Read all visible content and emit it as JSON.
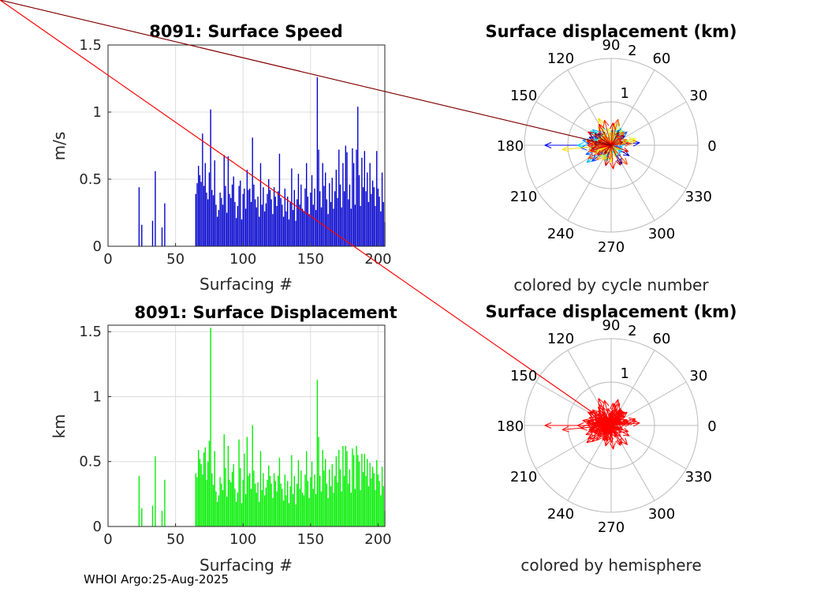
{
  "footer": "WHOI Argo:25-Aug-2025",
  "colors": {
    "speed_bar": "#0000cc",
    "displacement_bar": "#00ee00",
    "hemisphere_arrow": "#ff0000",
    "grid": "#dcdcdc",
    "polar_grid": "#bbbbbb",
    "axis": "#262626"
  },
  "chart_data": [
    {
      "id": "speed",
      "type": "bar",
      "title": "8091: Surface Speed",
      "xlabel": "Surfacing #",
      "ylabel": "m/s",
      "xlim": [
        0,
        205
      ],
      "ylim": [
        0,
        1.5
      ],
      "xticks": [
        0,
        50,
        100,
        150,
        200
      ],
      "xtick_labels": [
        "0",
        "50",
        "100",
        "150",
        "200"
      ],
      "yticks": [
        0,
        0.5,
        1,
        1.5
      ],
      "ytick_labels": [
        "0",
        "0.5",
        "1",
        "1.5"
      ],
      "grid": true,
      "series": [
        {
          "name": "speed",
          "color": "#0000cc"
        }
      ]
    },
    {
      "id": "displacement",
      "type": "bar",
      "title": "8091: Surface Displacement",
      "xlabel": "Surfacing #",
      "ylabel": "km",
      "xlim": [
        0,
        205
      ],
      "ylim": [
        0,
        1.55
      ],
      "xticks": [
        0,
        50,
        100,
        150,
        200
      ],
      "xtick_labels": [
        "0",
        "50",
        "100",
        "150",
        "200"
      ],
      "yticks": [
        0,
        0.5,
        1,
        1.5
      ],
      "ytick_labels": [
        "0",
        "0.5",
        "1",
        "1.5"
      ],
      "grid": true,
      "series": [
        {
          "name": "displacement",
          "color": "#00ee00"
        }
      ]
    },
    {
      "id": "polar_cycle",
      "type": "polar-compass",
      "title": "Surface displacement (km)",
      "caption": "colored by cycle number",
      "rmax": 2,
      "rings": [
        1,
        2
      ],
      "ring_labels": [
        "1",
        "2"
      ],
      "angles_deg": [
        0,
        30,
        60,
        90,
        120,
        150,
        180,
        210,
        240,
        270,
        300,
        330
      ],
      "angle_labels": [
        "0",
        "30",
        "60",
        "90",
        "120",
        "150",
        "180",
        "210",
        "240",
        "270",
        "300",
        "330"
      ],
      "coloring": "jet-by-cycle",
      "series": [
        {
          "name": "displacement vectors"
        }
      ]
    },
    {
      "id": "polar_hemisphere",
      "type": "polar-compass",
      "title": "Surface displacement (km)",
      "caption": "colored by hemisphere",
      "rmax": 2,
      "rings": [
        1,
        2
      ],
      "ring_labels": [
        "1",
        "2"
      ],
      "angles_deg": [
        0,
        30,
        60,
        90,
        120,
        150,
        180,
        210,
        240,
        270,
        300,
        330
      ],
      "angle_labels": [
        "0",
        "30",
        "60",
        "90",
        "120",
        "150",
        "180",
        "210",
        "240",
        "270",
        "300",
        "330"
      ],
      "coloring": "hemisphere",
      "series": [
        {
          "name": "displacement vectors",
          "color": "#ff0000"
        }
      ]
    }
  ],
  "surfacings": {
    "cycle": [
      23,
      25,
      33,
      35,
      40,
      42,
      65,
      66,
      67,
      68,
      69,
      70,
      71,
      72,
      73,
      74,
      75,
      76,
      77,
      78,
      79,
      80,
      81,
      82,
      83,
      84,
      85,
      86,
      87,
      88,
      89,
      90,
      91,
      92,
      93,
      94,
      95,
      96,
      97,
      98,
      99,
      100,
      101,
      102,
      103,
      104,
      105,
      106,
      107,
      108,
      109,
      110,
      111,
      112,
      113,
      114,
      115,
      116,
      117,
      118,
      119,
      120,
      121,
      122,
      123,
      124,
      125,
      126,
      127,
      128,
      129,
      130,
      131,
      132,
      133,
      134,
      135,
      136,
      137,
      138,
      139,
      140,
      141,
      142,
      143,
      144,
      145,
      146,
      147,
      148,
      149,
      150,
      151,
      152,
      153,
      154,
      155,
      156,
      157,
      158,
      159,
      160,
      161,
      162,
      163,
      164,
      165,
      166,
      167,
      168,
      169,
      170,
      171,
      172,
      173,
      174,
      175,
      176,
      177,
      178,
      179,
      180,
      181,
      182,
      183,
      184,
      185,
      186,
      187,
      188,
      189,
      190,
      191,
      192,
      193,
      194,
      195,
      196,
      197,
      198,
      199,
      200,
      201,
      202,
      203,
      204,
      205
    ],
    "speed": [
      0.44,
      0.16,
      0.19,
      0.56,
      0.14,
      0.32,
      0.39,
      0.47,
      0.6,
      0.53,
      0.48,
      0.84,
      0.45,
      0.62,
      0.4,
      0.35,
      0.55,
      1.02,
      0.42,
      0.38,
      0.64,
      0.31,
      0.22,
      0.27,
      0.4,
      0.36,
      0.31,
      0.68,
      0.45,
      0.25,
      0.67,
      0.39,
      0.36,
      0.46,
      0.52,
      0.33,
      0.21,
      0.3,
      0.45,
      0.49,
      0.2,
      0.39,
      0.43,
      0.28,
      0.57,
      0.42,
      0.43,
      0.33,
      0.81,
      0.46,
      0.35,
      0.29,
      0.37,
      0.22,
      0.62,
      0.31,
      0.44,
      0.26,
      0.32,
      0.39,
      0.5,
      0.42,
      0.35,
      0.24,
      0.44,
      0.37,
      0.3,
      0.41,
      0.69,
      0.36,
      0.31,
      0.22,
      0.43,
      0.26,
      0.37,
      0.2,
      0.33,
      0.58,
      0.27,
      0.42,
      0.19,
      0.35,
      0.54,
      0.31,
      0.46,
      0.28,
      0.26,
      0.43,
      0.62,
      0.37,
      0.24,
      0.4,
      0.53,
      0.31,
      0.43,
      0.27,
      1.26,
      0.72,
      0.41,
      0.29,
      0.62,
      0.45,
      0.55,
      0.35,
      0.24,
      0.47,
      0.33,
      0.51,
      0.28,
      0.41,
      0.57,
      0.36,
      0.72,
      0.46,
      0.29,
      0.62,
      0.41,
      0.75,
      0.7,
      0.35,
      0.46,
      0.28,
      0.73,
      0.62,
      0.31,
      0.72,
      1.04,
      0.53,
      0.3,
      0.66,
      0.44,
      0.71,
      0.41,
      0.55,
      0.33,
      0.62,
      0.39,
      0.49,
      0.44,
      0.3,
      0.71,
      0.43,
      0.37,
      0.26,
      0.55,
      0.33,
      0.18
    ],
    "displacement": [
      0.39,
      0.14,
      0.16,
      0.54,
      0.12,
      0.36,
      0.41,
      0.38,
      0.59,
      0.52,
      0.48,
      0.4,
      0.57,
      0.61,
      0.36,
      0.5,
      0.66,
      1.53,
      0.41,
      0.32,
      0.58,
      0.27,
      0.19,
      0.24,
      0.38,
      0.33,
      0.28,
      0.71,
      0.45,
      0.23,
      0.62,
      0.36,
      0.34,
      0.42,
      0.48,
      0.29,
      0.19,
      0.26,
      0.67,
      0.45,
      0.18,
      0.36,
      0.56,
      0.25,
      0.69,
      0.39,
      0.41,
      0.29,
      0.78,
      0.43,
      0.33,
      0.26,
      0.34,
      0.19,
      0.58,
      0.28,
      0.41,
      0.24,
      0.3,
      0.36,
      0.47,
      0.39,
      0.33,
      0.22,
      0.41,
      0.35,
      0.27,
      0.39,
      0.53,
      0.33,
      0.29,
      0.2,
      0.4,
      0.24,
      0.35,
      0.18,
      0.31,
      0.55,
      0.25,
      0.39,
      0.17,
      0.33,
      0.51,
      0.29,
      0.43,
      0.26,
      0.24,
      0.4,
      0.58,
      0.35,
      0.22,
      0.38,
      0.5,
      0.29,
      0.4,
      0.25,
      1.13,
      0.69,
      0.39,
      0.27,
      0.59,
      0.43,
      0.52,
      0.33,
      0.22,
      0.44,
      0.31,
      0.48,
      0.26,
      0.39,
      0.54,
      0.34,
      0.59,
      0.44,
      0.27,
      0.62,
      0.39,
      0.62,
      0.58,
      0.33,
      0.44,
      0.26,
      0.6,
      0.55,
      0.29,
      0.62,
      0.55,
      0.5,
      0.28,
      0.56,
      0.42,
      0.56,
      0.39,
      0.52,
      0.31,
      0.49,
      0.37,
      0.46,
      0.41,
      0.28,
      0.51,
      0.4,
      0.35,
      0.24,
      0.46,
      0.31,
      0.12
    ],
    "direction_deg": [
      175,
      200,
      20,
      160,
      95,
      250,
      10,
      35,
      150,
      190,
      330,
      60,
      175,
      210,
      120,
      300,
      5,
      180,
      140,
      80,
      220,
      15,
      345,
      100,
      165,
      45,
      270,
      185,
      130,
      25,
      200,
      85,
      310,
      155,
      40,
      230,
      110,
      350,
      170,
      60,
      290,
      195,
      140,
      20,
      215,
      75,
      160,
      325,
      180,
      50,
      240,
      120,
      5,
      280,
      145,
      90,
      205,
      30,
      340,
      170,
      115,
      255,
      65,
      190,
      15,
      135,
      300,
      225,
      170,
      45,
      95,
      260,
      185,
      10,
      150,
      320,
      205,
      70,
      165,
      245,
      35,
      125,
      190,
      290,
      55,
      175,
      220,
      100,
      15,
      160,
      335,
      200,
      80,
      140,
      270,
      30,
      185,
      115,
      240,
      160,
      10,
      205,
      125,
      60,
      300,
      175,
      90,
      225,
      150,
      20,
      195,
      265,
      170,
      45,
      130,
      210,
      185,
      75,
      310,
      160,
      5,
      235,
      105,
      180,
      55,
      150,
      275,
      195,
      30,
      120,
      340,
      170,
      215,
      85,
      160,
      255,
      40,
      190,
      135,
      15,
      295,
      175,
      60,
      230,
      145
    ]
  }
}
